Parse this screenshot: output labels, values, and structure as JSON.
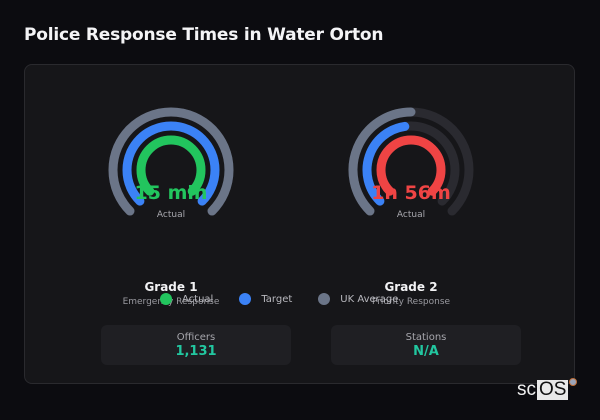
{
  "header": {
    "title": "Police Response Times in Water Orton"
  },
  "colors": {
    "actual_good": "#22c55e",
    "actual_bad": "#ef4444",
    "target": "#3b82f6",
    "uk_average": "#6b7588",
    "track": "#2a2a30",
    "stat_value": "#22c7a0"
  },
  "gauges": [
    {
      "name": "Grade 1",
      "subtitle": "Emergency Response",
      "value_text": "15 min",
      "value_label": "Actual",
      "value_color": "#22c55e"
    },
    {
      "name": "Grade 2",
      "subtitle": "Priority Response",
      "value_text": "1h 56m",
      "value_label": "Actual",
      "value_color": "#ef4444"
    }
  ],
  "legend": [
    {
      "label": "Actual",
      "color": "#22c55e"
    },
    {
      "label": "Target",
      "color": "#3b82f6"
    },
    {
      "label": "UK Average",
      "color": "#6b7588"
    }
  ],
  "stats": [
    {
      "label": "Officers",
      "value": "1,131"
    },
    {
      "label": "Stations",
      "value": "N/A"
    }
  ],
  "brand": {
    "prefix": "sc",
    "highlight": "OS"
  },
  "chart_data": {
    "type": "radial-bar",
    "title": "Police Response Times in Water Orton",
    "arc_sweep_degrees": 270,
    "series_order_outer_to_inner": [
      "UK Average",
      "Target",
      "Actual"
    ],
    "charts": [
      {
        "name": "Grade 1",
        "subtitle": "Emergency Response",
        "center_label": "15 min",
        "fill_fraction": {
          "UK Average": 1.0,
          "Target": 1.0,
          "Actual": 1.0
        },
        "actual_color": "#22c55e"
      },
      {
        "name": "Grade 2",
        "subtitle": "Priority Response",
        "center_label": "1h 56m",
        "fill_fraction": {
          "UK Average": 0.5,
          "Target": 0.47,
          "Actual": 1.0
        },
        "actual_color": "#ef4444"
      }
    ]
  }
}
